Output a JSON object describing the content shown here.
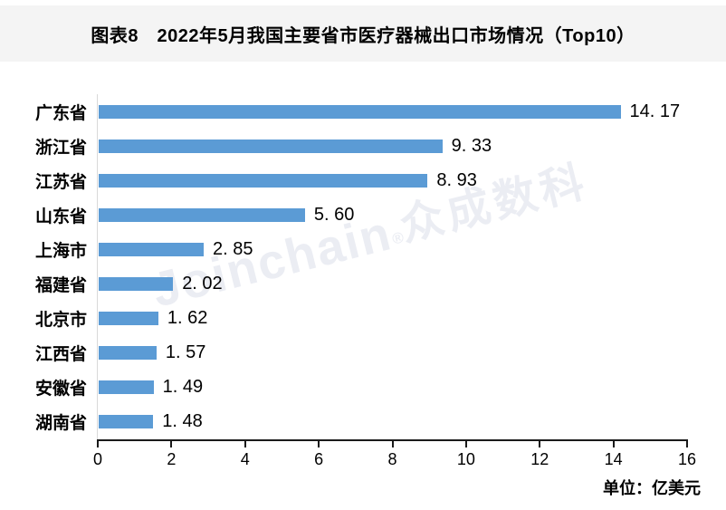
{
  "header": {
    "title": "图表8　2022年5月我国主要省市医疗器械出口市场情况（Top10）"
  },
  "chart_data": {
    "type": "bar",
    "orientation": "horizontal",
    "title": "图表8　2022年5月我国主要省市医疗器械出口市场情况（Top10）",
    "categories": [
      "广东省",
      "浙江省",
      "江苏省",
      "山东省",
      "上海市",
      "福建省",
      "北京市",
      "江西省",
      "安徽省",
      "湖南省"
    ],
    "values": [
      14.17,
      9.33,
      8.93,
      5.6,
      2.85,
      2.02,
      1.62,
      1.57,
      1.49,
      1.48
    ],
    "data_labels": [
      "14. 17",
      "9. 33",
      "8. 93",
      "5. 60",
      "2. 85",
      "2. 02",
      "1. 62",
      "1. 57",
      "1. 49",
      "1. 48"
    ],
    "x_ticks": [
      "0",
      "2",
      "4",
      "6",
      "8",
      "10",
      "12",
      "14",
      "16"
    ],
    "xlim": [
      0,
      16
    ],
    "xlabel": "",
    "ylabel": "",
    "unit_label": "单位：亿美元",
    "grid": false,
    "legend": false,
    "bar_color": "#5b9bd5",
    "axis_line_color": "#1a1a1a",
    "category_axis_line_color": "#d9d9d9"
  },
  "watermark": {
    "text_latin": "Joinchain",
    "reg_mark": "®",
    "text_cn": "众成数科",
    "color": "#ebedf3"
  }
}
